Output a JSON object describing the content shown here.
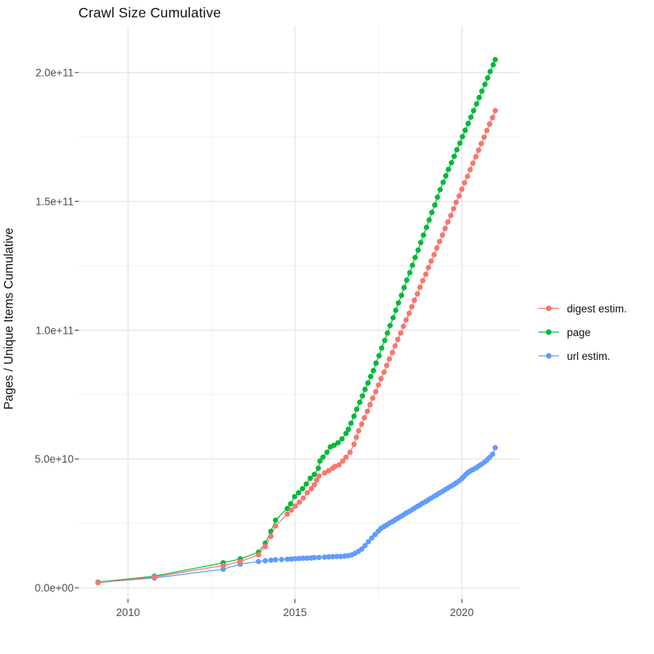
{
  "title": "Crawl Size Cumulative",
  "axes": {
    "y_title": "Pages / Unique Items Cumulative",
    "x_ticks": [
      {
        "label": "2010",
        "year": 2010
      },
      {
        "label": "2015",
        "year": 2015
      },
      {
        "label": "2020",
        "year": 2020
      }
    ],
    "y_ticks": [
      {
        "label": "0.0e+00",
        "value_e9": 0
      },
      {
        "label": "5.0e+10",
        "value_e9": 50
      },
      {
        "label": "1.0e+11",
        "value_e9": 100
      },
      {
        "label": "1.5e+11",
        "value_e9": 150
      },
      {
        "label": "2.0e+11",
        "value_e9": 200
      }
    ],
    "x_minor_gridlines_years": [
      2012.5,
      2017.5
    ],
    "y_minor_gridlines_e9": [
      25,
      75,
      125,
      175
    ]
  },
  "legend": {
    "position": "right",
    "items": [
      {
        "label": "digest estim.",
        "color": "#F8766D"
      },
      {
        "label": "page",
        "color": "#00BA38"
      },
      {
        "label": "url estim.",
        "color": "#619CFF"
      }
    ]
  },
  "chart_data": {
    "type": "scatter",
    "marker": "point-with-line",
    "title": "Crawl Size Cumulative",
    "xlabel": "",
    "ylabel": "Pages / Unique Items Cumulative",
    "x_unit": "year (decimal)",
    "y_unit": "items, billions (1e9)",
    "xlim": [
      2008.5,
      2021.7
    ],
    "ylim_e9": [
      0,
      218
    ],
    "grid": "on",
    "legend_position": "right",
    "series": [
      {
        "name": "page",
        "color": "#00BA38",
        "points": [
          [
            2009.1,
            2.2
          ],
          [
            2010.79,
            4.5
          ],
          [
            2012.85,
            9.7
          ],
          [
            2013.36,
            11.2
          ],
          [
            2013.91,
            13.8
          ],
          [
            2014.11,
            17.3
          ],
          [
            2014.28,
            21.9
          ],
          [
            2014.42,
            26.2
          ],
          [
            2014.77,
            30.8
          ],
          [
            2014.87,
            32.6
          ],
          [
            2014.99,
            35.4
          ],
          [
            2015.11,
            36.9
          ],
          [
            2015.23,
            38.5
          ],
          [
            2015.34,
            40.3
          ],
          [
            2015.46,
            42.5
          ],
          [
            2015.58,
            44.0
          ],
          [
            2015.7,
            46.4
          ],
          [
            2015.75,
            49.2
          ],
          [
            2015.84,
            50.7
          ],
          [
            2015.96,
            52.6
          ],
          [
            2016.06,
            54.7
          ],
          [
            2016.17,
            55.3
          ],
          [
            2016.29,
            56.3
          ],
          [
            2016.41,
            57.8
          ],
          [
            2016.53,
            59.9
          ],
          [
            2016.6,
            61.5
          ],
          [
            2016.68,
            63.9
          ],
          [
            2016.77,
            66.6
          ],
          [
            2016.85,
            69.3
          ],
          [
            2016.94,
            72.0
          ],
          [
            2017.02,
            74.5
          ],
          [
            2017.1,
            77.0
          ],
          [
            2017.19,
            79.5
          ],
          [
            2017.27,
            82.0
          ],
          [
            2017.35,
            84.3
          ],
          [
            2017.43,
            87.2
          ],
          [
            2017.52,
            90.1
          ],
          [
            2017.6,
            93.1
          ],
          [
            2017.69,
            96.0
          ],
          [
            2017.77,
            98.9
          ],
          [
            2017.85,
            101.8
          ],
          [
            2017.94,
            104.8
          ],
          [
            2018.02,
            107.7
          ],
          [
            2018.1,
            110.6
          ],
          [
            2018.19,
            113.5
          ],
          [
            2018.27,
            116.5
          ],
          [
            2018.35,
            119.4
          ],
          [
            2018.44,
            122.3
          ],
          [
            2018.52,
            125.2
          ],
          [
            2018.6,
            128.2
          ],
          [
            2018.69,
            131.1
          ],
          [
            2018.77,
            134.0
          ],
          [
            2018.85,
            136.9
          ],
          [
            2018.94,
            139.9
          ],
          [
            2019.02,
            142.8
          ],
          [
            2019.1,
            145.7
          ],
          [
            2019.19,
            148.6
          ],
          [
            2019.27,
            151.6
          ],
          [
            2019.35,
            154.5
          ],
          [
            2019.44,
            157.4
          ],
          [
            2019.52,
            159.9
          ],
          [
            2019.6,
            162.4
          ],
          [
            2019.69,
            165.0
          ],
          [
            2019.77,
            167.5
          ],
          [
            2019.85,
            170.0
          ],
          [
            2019.94,
            172.6
          ],
          [
            2020.02,
            175.1
          ],
          [
            2020.1,
            177.6
          ],
          [
            2020.19,
            180.2
          ],
          [
            2020.27,
            182.7
          ],
          [
            2020.35,
            185.2
          ],
          [
            2020.44,
            187.8
          ],
          [
            2020.52,
            190.3
          ],
          [
            2020.6,
            192.8
          ],
          [
            2020.69,
            195.4
          ],
          [
            2020.77,
            197.9
          ],
          [
            2020.85,
            200.4
          ],
          [
            2020.94,
            203.0
          ],
          [
            2021.0,
            205.0
          ]
        ]
      },
      {
        "name": "url estim.",
        "color": "#619CFF",
        "points": [
          [
            2009.1,
            2.1
          ],
          [
            2010.79,
            3.8
          ],
          [
            2012.85,
            7.2
          ],
          [
            2013.36,
            9.2
          ],
          [
            2013.91,
            10.2
          ],
          [
            2014.11,
            10.5
          ],
          [
            2014.28,
            10.7
          ],
          [
            2014.42,
            10.9
          ],
          [
            2014.6,
            11.0
          ],
          [
            2014.77,
            11.1
          ],
          [
            2014.89,
            11.2
          ],
          [
            2015.01,
            11.3
          ],
          [
            2015.13,
            11.4
          ],
          [
            2015.25,
            11.5
          ],
          [
            2015.37,
            11.5
          ],
          [
            2015.49,
            11.6
          ],
          [
            2015.58,
            11.7
          ],
          [
            2015.72,
            11.8
          ],
          [
            2015.89,
            11.9
          ],
          [
            2016.01,
            12.0
          ],
          [
            2016.13,
            12.1
          ],
          [
            2016.25,
            12.2
          ],
          [
            2016.37,
            12.2
          ],
          [
            2016.49,
            12.3
          ],
          [
            2016.6,
            12.5
          ],
          [
            2016.7,
            12.8
          ],
          [
            2016.8,
            13.4
          ],
          [
            2016.9,
            14.1
          ],
          [
            2017.0,
            15.0
          ],
          [
            2017.1,
            16.4
          ],
          [
            2017.2,
            17.9
          ],
          [
            2017.3,
            19.3
          ],
          [
            2017.4,
            20.7
          ],
          [
            2017.5,
            22.0
          ],
          [
            2017.58,
            23.1
          ],
          [
            2017.67,
            23.8
          ],
          [
            2017.75,
            24.4
          ],
          [
            2017.83,
            25.1
          ],
          [
            2017.92,
            25.7
          ],
          [
            2018.0,
            26.4
          ],
          [
            2018.08,
            27.0
          ],
          [
            2018.17,
            27.7
          ],
          [
            2018.25,
            28.3
          ],
          [
            2018.33,
            29.0
          ],
          [
            2018.42,
            29.6
          ],
          [
            2018.5,
            30.3
          ],
          [
            2018.58,
            30.9
          ],
          [
            2018.67,
            31.6
          ],
          [
            2018.75,
            32.2
          ],
          [
            2018.83,
            32.9
          ],
          [
            2018.92,
            33.5
          ],
          [
            2019.0,
            34.2
          ],
          [
            2019.08,
            34.8
          ],
          [
            2019.17,
            35.5
          ],
          [
            2019.25,
            36.1
          ],
          [
            2019.33,
            36.8
          ],
          [
            2019.42,
            37.4
          ],
          [
            2019.5,
            38.1
          ],
          [
            2019.58,
            38.7
          ],
          [
            2019.67,
            39.4
          ],
          [
            2019.75,
            40.0
          ],
          [
            2019.83,
            40.7
          ],
          [
            2019.92,
            41.5
          ],
          [
            2020.0,
            42.4
          ],
          [
            2020.06,
            43.2
          ],
          [
            2020.12,
            44.0
          ],
          [
            2020.18,
            44.7
          ],
          [
            2020.25,
            45.3
          ],
          [
            2020.33,
            45.9
          ],
          [
            2020.42,
            46.5
          ],
          [
            2020.5,
            47.2
          ],
          [
            2020.58,
            47.9
          ],
          [
            2020.67,
            48.7
          ],
          [
            2020.75,
            49.6
          ],
          [
            2020.83,
            50.6
          ],
          [
            2020.92,
            51.8
          ],
          [
            2021.0,
            54.4
          ]
        ]
      },
      {
        "name": "digest estim.",
        "color": "#F8766D",
        "points": [
          [
            2009.1,
            2.0
          ],
          [
            2010.79,
            4.2
          ],
          [
            2012.85,
            8.7
          ],
          [
            2013.36,
            10.2
          ],
          [
            2013.91,
            12.8
          ],
          [
            2014.11,
            16.0
          ],
          [
            2014.28,
            20.0
          ],
          [
            2014.42,
            24.0
          ],
          [
            2014.77,
            28.6
          ],
          [
            2014.89,
            30.2
          ],
          [
            2015.01,
            31.7
          ],
          [
            2015.13,
            33.2
          ],
          [
            2015.25,
            34.8
          ],
          [
            2015.37,
            36.9
          ],
          [
            2015.49,
            38.5
          ],
          [
            2015.58,
            40.0
          ],
          [
            2015.65,
            41.8
          ],
          [
            2015.72,
            43.4
          ],
          [
            2015.89,
            44.6
          ],
          [
            2016.01,
            45.5
          ],
          [
            2016.13,
            46.4
          ],
          [
            2016.2,
            47.1
          ],
          [
            2016.32,
            47.7
          ],
          [
            2016.43,
            49.2
          ],
          [
            2016.53,
            50.7
          ],
          [
            2016.65,
            52.6
          ],
          [
            2016.77,
            55.7
          ],
          [
            2016.84,
            58.4
          ],
          [
            2016.91,
            60.9
          ],
          [
            2017.0,
            63.5
          ],
          [
            2017.08,
            66.0
          ],
          [
            2017.17,
            68.5
          ],
          [
            2017.25,
            71.1
          ],
          [
            2017.33,
            73.6
          ],
          [
            2017.42,
            76.1
          ],
          [
            2017.5,
            78.7
          ],
          [
            2017.58,
            81.2
          ],
          [
            2017.67,
            83.7
          ],
          [
            2017.75,
            86.3
          ],
          [
            2017.83,
            88.8
          ],
          [
            2017.92,
            91.3
          ],
          [
            2018.0,
            93.9
          ],
          [
            2018.08,
            96.4
          ],
          [
            2018.17,
            98.9
          ],
          [
            2018.25,
            101.5
          ],
          [
            2018.33,
            104.0
          ],
          [
            2018.42,
            106.5
          ],
          [
            2018.5,
            109.1
          ],
          [
            2018.58,
            111.6
          ],
          [
            2018.67,
            114.1
          ],
          [
            2018.75,
            116.7
          ],
          [
            2018.83,
            119.2
          ],
          [
            2018.92,
            121.7
          ],
          [
            2019.0,
            124.3
          ],
          [
            2019.08,
            126.8
          ],
          [
            2019.17,
            129.3
          ],
          [
            2019.25,
            131.9
          ],
          [
            2019.33,
            134.4
          ],
          [
            2019.42,
            136.9
          ],
          [
            2019.5,
            139.5
          ],
          [
            2019.58,
            142.0
          ],
          [
            2019.67,
            144.5
          ],
          [
            2019.75,
            147.1
          ],
          [
            2019.83,
            149.6
          ],
          [
            2019.92,
            152.1
          ],
          [
            2020.0,
            154.7
          ],
          [
            2020.08,
            157.2
          ],
          [
            2020.17,
            159.7
          ],
          [
            2020.25,
            162.3
          ],
          [
            2020.33,
            164.8
          ],
          [
            2020.42,
            167.3
          ],
          [
            2020.5,
            169.9
          ],
          [
            2020.58,
            172.4
          ],
          [
            2020.67,
            174.9
          ],
          [
            2020.75,
            177.5
          ],
          [
            2020.83,
            180.0
          ],
          [
            2020.92,
            182.5
          ],
          [
            2021.0,
            185.2
          ]
        ]
      }
    ]
  }
}
